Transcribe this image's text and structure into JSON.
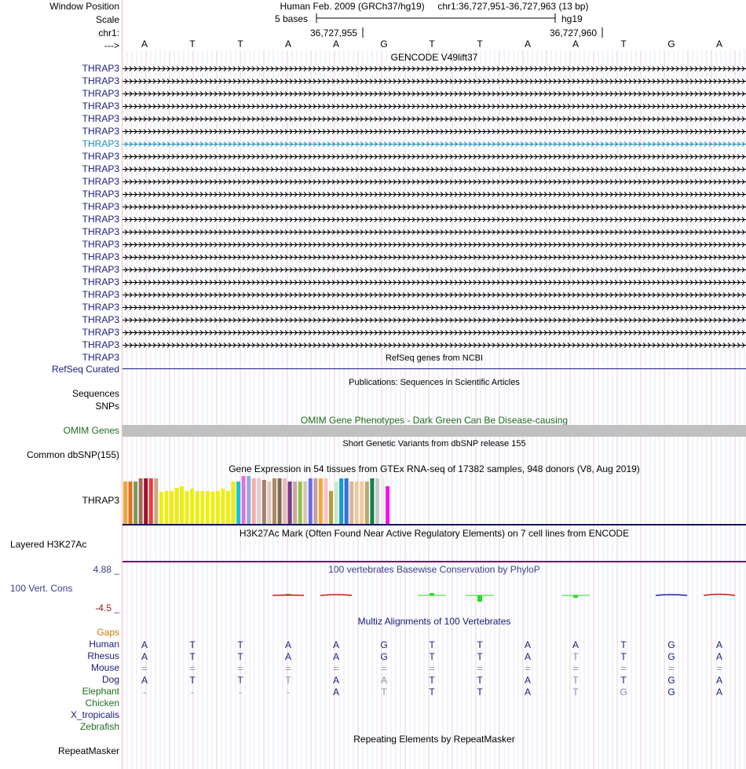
{
  "colors": {
    "navy": "#1a1a7a",
    "gene": "#000000",
    "geneHighlight": "#1a8cb4",
    "omim": "#1e6b1e",
    "omimBar": "#c0c0c0",
    "gtexLine": "#14145a",
    "h3k27": "#7a1060",
    "phylop": "#3c3c8c",
    "phylopLow": "#8b1a1a",
    "gaps": "#c8780a",
    "guide": "#c8c8e6",
    "divider": "#f2b8b8",
    "cons": "#20e020"
  },
  "header": {
    "window_position_label": "Window Position",
    "scale_label": "Scale",
    "chrom_label": "chr1:",
    "strand_label": "--->",
    "assembly": "Human Feb. 2009 (GRCh37/hg19)",
    "position": "chr1:36,727,951-36,727,963 (13 bp)",
    "scale_text": "5 bases",
    "scale_db": "hg19",
    "coord_left": "36,727,955",
    "coord_right": "36,727,960"
  },
  "sequence": [
    "A",
    "T",
    "T",
    "A",
    "A",
    "G",
    "T",
    "T",
    "A",
    "A",
    "T",
    "G",
    "A"
  ],
  "gencode": {
    "title": "GENCODE V49lift37",
    "transcripts": [
      "THRAP3",
      "THRAP3",
      "THRAP3",
      "THRAP3",
      "THRAP3",
      "THRAP3",
      "THRAP3",
      "THRAP3",
      "THRAP3",
      "THRAP3",
      "THRAP3",
      "THRAP3",
      "THRAP3",
      "THRAP3",
      "THRAP3",
      "THRAP3",
      "THRAP3",
      "THRAP3",
      "THRAP3",
      "THRAP3",
      "THRAP3",
      "THRAP3",
      "THRAP3",
      "THRAP3"
    ],
    "highlight_index": 6
  },
  "refseq": {
    "label": "RefSeq Curated",
    "title": "RefSeq genes from NCBI"
  },
  "publications": {
    "label_seq": "Sequences",
    "label_snp": "SNPs",
    "title": "Publications: Sequences in Scientific Articles"
  },
  "omim": {
    "label": "OMIM Genes",
    "title": "OMIM Gene Phenotypes - Dark Green Can Be Disease-causing"
  },
  "dbsnp": {
    "label": "Common dbSNP(155)",
    "title": "Short Genetic Variants from dbSNP release 155"
  },
  "gtex": {
    "label": "THRAP3",
    "title": "Gene Expression in 54 tissues from GTEx RNA-seq of 17382 samples, 948 donors (V8, Aug 2019)",
    "bars": [
      {
        "c": "#f7a13a",
        "v": 0.93
      },
      {
        "c": "#e6701a",
        "v": 0.93
      },
      {
        "c": "#7a9a5a",
        "v": 0.93
      },
      {
        "c": "#a06a5a",
        "v": 1.0
      },
      {
        "c": "#a0102a",
        "v": 1.0
      },
      {
        "c": "#f03a3a",
        "v": 1.0
      },
      {
        "c": "#c8a88a",
        "v": 1.0
      },
      {
        "c": "#eeee10",
        "v": 0.7
      },
      {
        "c": "#eeee10",
        "v": 0.73
      },
      {
        "c": "#eeee10",
        "v": 0.73
      },
      {
        "c": "#eeee10",
        "v": 0.8
      },
      {
        "c": "#eeee10",
        "v": 0.83
      },
      {
        "c": "#eeee10",
        "v": 0.73
      },
      {
        "c": "#eeee10",
        "v": 0.77
      },
      {
        "c": "#eeee10",
        "v": 0.72
      },
      {
        "c": "#eeee10",
        "v": 0.72
      },
      {
        "c": "#eeee10",
        "v": 0.73
      },
      {
        "c": "#eeee10",
        "v": 0.7
      },
      {
        "c": "#eeee10",
        "v": 0.72
      },
      {
        "c": "#eeee10",
        "v": 0.77
      },
      {
        "c": "#eeee10",
        "v": 0.73
      },
      {
        "c": "#eeee10",
        "v": 0.93
      },
      {
        "c": "#10c8c8",
        "v": 0.93
      },
      {
        "c": "#e070e0",
        "v": 1.05
      },
      {
        "c": "#9aa8d8",
        "v": 1.05
      },
      {
        "c": "#f0b0b0",
        "v": 1.0
      },
      {
        "c": "#e8c8c8",
        "v": 1.0
      },
      {
        "c": "#a08070",
        "v": 0.97
      },
      {
        "c": "#e0c8b8",
        "v": 0.93
      },
      {
        "c": "#a88868",
        "v": 1.0
      },
      {
        "c": "#806a50",
        "v": 1.0
      },
      {
        "c": "#e0c0c0",
        "v": 1.0
      },
      {
        "c": "#7a3a8a",
        "v": 0.93
      },
      {
        "c": "#c8a8a0",
        "v": 0.93
      },
      {
        "c": "#90c050",
        "v": 0.93
      },
      {
        "c": "#d8c8a8",
        "v": 0.93
      },
      {
        "c": "#6a6af0",
        "v": 1.0
      },
      {
        "c": "#c0a0a0",
        "v": 1.0
      },
      {
        "c": "#f0a838",
        "v": 1.0
      },
      {
        "c": "#f8c0c8",
        "v": 1.0
      },
      {
        "c": "#b89a3a",
        "v": 0.73
      },
      {
        "c": "#c8e8c8",
        "v": 0.93
      },
      {
        "c": "#10a0c8",
        "v": 1.0
      },
      {
        "c": "#3870d8",
        "v": 1.0
      },
      {
        "c": "#d8b898",
        "v": 0.93
      },
      {
        "c": "#e8c8a8",
        "v": 0.93
      },
      {
        "c": "#f8c898",
        "v": 0.93
      },
      {
        "c": "#b8a878",
        "v": 0.93
      },
      {
        "c": "#10804a",
        "v": 1.0
      },
      {
        "c": "#c8c8c8",
        "v": 1.0
      },
      {
        "c": "#ececec",
        "v": 1.0
      },
      {
        "c": "#f810e8",
        "v": 0.83
      }
    ]
  },
  "h3k27ac": {
    "label": "Layered H3K27Ac",
    "title": "H3K27Ac Mark (Often Found Near Active Regulatory Elements) on 7 cell lines from ENCODE"
  },
  "cons": {
    "label": "100 Vert. Cons",
    "max": "4.88 _",
    "min": "-4.5 _",
    "title": "100 vertebrates Basewise Conservation by PhyloP",
    "phylop": [
      {
        "pos": 3,
        "v": 0.4,
        "kind": "green"
      },
      {
        "pos": 3,
        "v": -0.2,
        "kind": "red"
      },
      {
        "pos": 4,
        "v": -0.5,
        "kind": "red"
      },
      {
        "pos": 6,
        "v": 0.9,
        "kind": "green"
      },
      {
        "pos": 7,
        "v": -2.5,
        "kind": "green"
      },
      {
        "pos": 9,
        "v": -0.9,
        "kind": "green"
      },
      {
        "pos": 11,
        "v": -0.5,
        "kind": "blue"
      },
      {
        "pos": 12,
        "v": -0.7,
        "kind": "red"
      }
    ]
  },
  "multiz": {
    "title": "Multiz Alignments of 100 Vertebrates",
    "rows": [
      {
        "name": "Gaps",
        "color": "#c8780a",
        "bases": []
      },
      {
        "name": "Human",
        "color": "#1a1a7a",
        "bases": [
          "A",
          "T",
          "T",
          "A",
          "A",
          "G",
          "T",
          "T",
          "A",
          "A",
          "T",
          "G",
          "A"
        ]
      },
      {
        "name": "Rhesus",
        "color": "#1a1a7a",
        "bases": [
          "A",
          "T",
          "T",
          "A",
          "A",
          "G",
          "T",
          "T",
          "A",
          "T",
          "T",
          "G",
          "A"
        ],
        "faint": [
          9
        ]
      },
      {
        "name": "Mouse",
        "color": "#1a1a7a",
        "bases": [
          "=",
          "=",
          "=",
          "=",
          "=",
          "=",
          "=",
          "=",
          "=",
          "=",
          "=",
          "=",
          "="
        ],
        "faint": [
          0,
          1,
          2,
          3,
          4,
          5,
          6,
          7,
          8,
          9,
          10,
          11,
          12
        ]
      },
      {
        "name": "Dog",
        "color": "#1a1a7a",
        "bases": [
          "A",
          "T",
          "T",
          "T",
          "A",
          "A",
          "T",
          "T",
          "A",
          "T",
          "T",
          "G",
          "A"
        ],
        "faint": [
          3,
          5,
          9
        ]
      },
      {
        "name": "Elephant",
        "color": "#1e6b1e",
        "bases": [
          "-",
          "-",
          "-",
          "-",
          "A",
          "T",
          "T",
          "T",
          "A",
          "T",
          "G",
          "G",
          "A"
        ],
        "faint": [
          0,
          1,
          2,
          3,
          5,
          9,
          10
        ]
      },
      {
        "name": "Chicken",
        "color": "#1e6b1e",
        "bases": []
      },
      {
        "name": "X_tropicalis",
        "color": "#1a1a7a",
        "bases": []
      },
      {
        "name": "Zebrafish",
        "color": "#1e6b1e",
        "bases": []
      }
    ]
  },
  "repeatmasker": {
    "label": "RepeatMasker",
    "title": "Repeating Elements by RepeatMasker"
  }
}
